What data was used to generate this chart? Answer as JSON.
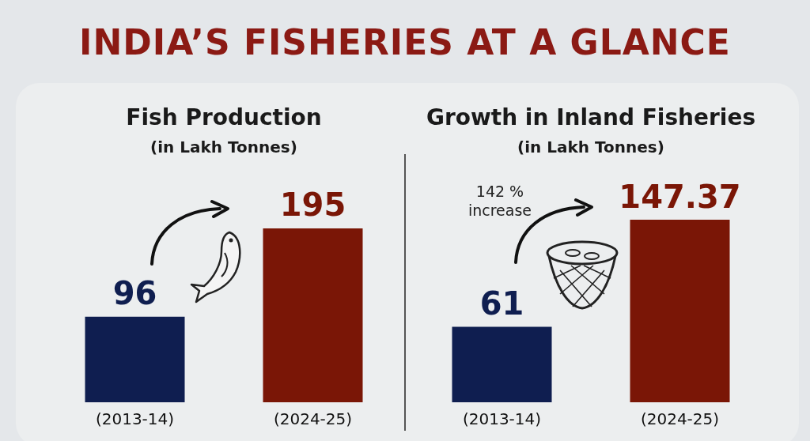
{
  "chart_data": [
    {
      "type": "bar",
      "title": "Fish Production",
      "subtitle": "(in Lakh Tonnes)",
      "categories": [
        "(2013-14)",
        "(2024-25)"
      ],
      "values": [
        96,
        195
      ],
      "colors": [
        "#0f1e50",
        "#7a1606"
      ],
      "data_labels": true,
      "annotations": [
        "INDIA’S FISHERIES AT A GLANCE"
      ]
    },
    {
      "type": "bar",
      "title": "Growth in Inland Fisheries",
      "subtitle": "(in Lakh Tonnes)",
      "categories": [
        "(2013-14)",
        "(2024-25)"
      ],
      "values": [
        61,
        147.37
      ],
      "colors": [
        "#0f1e50",
        "#7a1606"
      ],
      "data_labels": true,
      "annotations": [
        "142 % increase"
      ]
    }
  ]
}
